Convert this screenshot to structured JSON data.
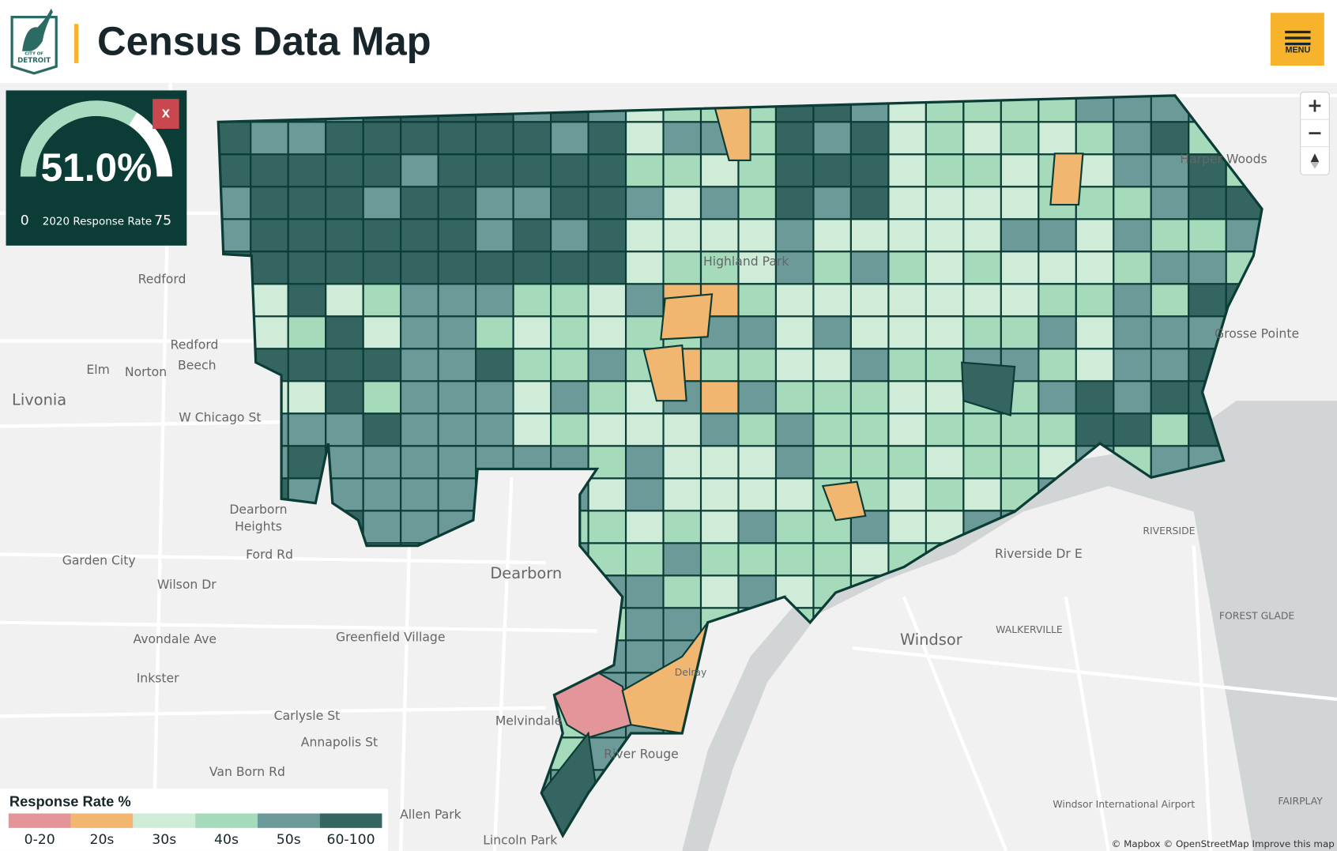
{
  "header": {
    "logo_small": "CITY OF",
    "logo_name": "DETROIT",
    "title": "Census Data Map",
    "menu": "MENU"
  },
  "gauge": {
    "value": 51.0,
    "value_label": "51.0%",
    "min": 0,
    "max": 75,
    "label": "2020 Response Rate",
    "close": "x"
  },
  "legend": {
    "title": "Response Rate %",
    "items": [
      {
        "label": "0-20",
        "color": "#e4959a"
      },
      {
        "label": "20s",
        "color": "#f1b670"
      },
      {
        "label": "30s",
        "color": "#cfecd9"
      },
      {
        "label": "40s",
        "color": "#a5dbbb"
      },
      {
        "label": "50s",
        "color": "#6c9a98"
      },
      {
        "label": "60-100",
        "color": "#346561"
      }
    ]
  },
  "map": {
    "controls": [
      "+",
      "−"
    ],
    "places": [
      "Harper Woods",
      "Grosse Pointe",
      "Highland Park",
      "Redford",
      "Redford",
      "Elm",
      "Norton",
      "Beech",
      "Livonia",
      "W Chicago St",
      "Dearborn",
      "Heights",
      "Garden City",
      "Ford Rd",
      "Wilson Dr",
      "Dearborn",
      "Avondale Ave",
      "Greenfield Village",
      "Inkster",
      "Melvindale",
      "River Rouge",
      "Allen Park",
      "Lincoln Park",
      "Windsor",
      "WALKERVILLE",
      "RIVERSIDE",
      "Delray",
      "Windsor International Airport",
      "FOREST GLADE",
      "FAIRPLAY",
      "Van Born Rd",
      "Annapolis St",
      "Carlysle St",
      "Riverside Dr E"
    ],
    "attribution": "© Mapbox © OpenStreetMap Improve this map"
  }
}
